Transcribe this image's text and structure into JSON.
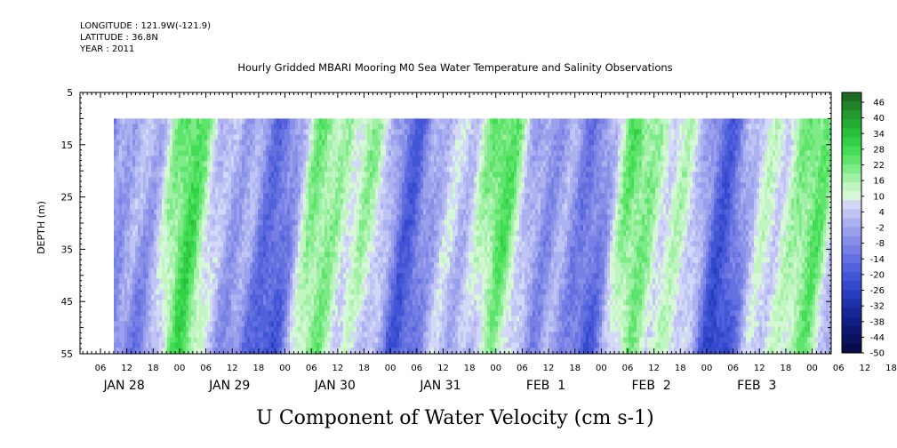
{
  "header": {
    "longitude": "LONGITUDE : 121.9W(-121.9)",
    "latitude": "LATITUDE : 36.8N",
    "year": "YEAR : 2011"
  },
  "chart_data": {
    "type": "heatmap",
    "title": "Hourly Gridded MBARI Mooring M0 Sea Water Temperature and Salinity Observations",
    "variable_label": "U Component of Water Velocity (cm s-1)",
    "ylabel": "DEPTH (m)",
    "ylim": [
      5,
      55
    ],
    "y_inverted": true,
    "yticks": [
      5,
      15,
      25,
      35,
      45,
      55
    ],
    "data_depth_range": [
      10,
      55
    ],
    "x_hour_ticks": [
      "06",
      "12",
      "18",
      "00",
      "06",
      "12",
      "18",
      "00",
      "06",
      "12",
      "18",
      "00",
      "06",
      "12",
      "18",
      "00",
      "06",
      "12",
      "18",
      "00",
      "06",
      "12",
      "18",
      "00",
      "06",
      "12",
      "18",
      "00",
      "06",
      "12",
      "18",
      "00"
    ],
    "x_day_labels": [
      "JAN 28",
      "JAN 29",
      "JAN 30",
      "JAN 31",
      "FEB  1",
      "FEB  2",
      "FEB  3"
    ],
    "colorbar": {
      "labels": [
        "46",
        "40",
        "34",
        "28",
        "22",
        "16",
        "10",
        "4",
        "-2",
        "-8",
        "-14",
        "-20",
        "-26",
        "-32",
        "-38",
        "-44",
        "-50"
      ],
      "range": [
        -50,
        52
      ],
      "step": 3,
      "positive_colors": [
        "#1f6b24",
        "#21822a",
        "#23992f",
        "#25ac35",
        "#29c03c",
        "#32d046",
        "#42dc55",
        "#5ee46b",
        "#7eea88",
        "#a0f0a6",
        "#c0f5c2",
        "#d6f8d6"
      ],
      "negative_colors": [
        "#d4d8f8",
        "#c0c4f4",
        "#acb1f0",
        "#9aa0ec",
        "#888fe8",
        "#767fe4",
        "#6470e0",
        "#5262dc",
        "#4255d6",
        "#3448cc",
        "#283cbe",
        "#1e32ac",
        "#172798",
        "#121f84",
        "#0e1870",
        "#0a125e",
        "#070c4c"
      ]
    }
  }
}
